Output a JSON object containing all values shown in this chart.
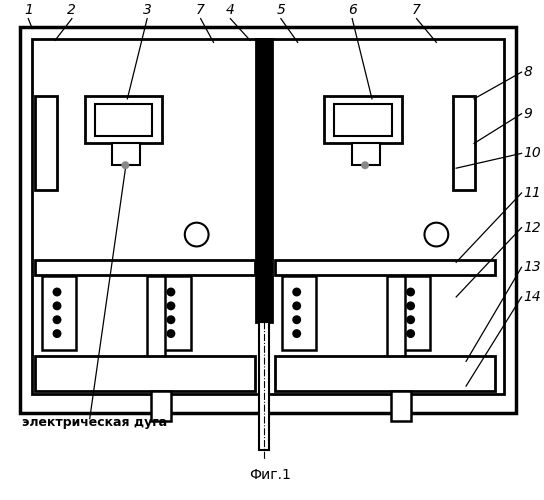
{
  "title": "Фиг.1",
  "label_electric": "электрическая дуга",
  "bg_color": "#ffffff",
  "line_color": "#000000"
}
